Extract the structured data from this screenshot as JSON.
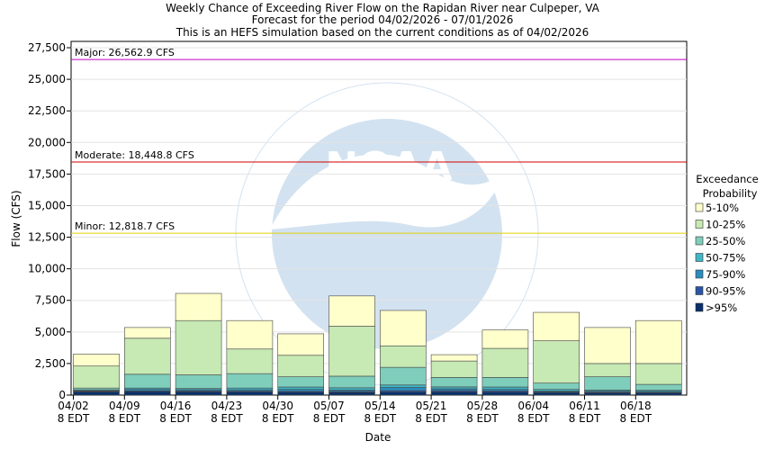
{
  "chart_data": {
    "type": "bar",
    "stacked": true,
    "title": [
      "Weekly Chance of Exceeding River Flow on the Rapidan River near Culpeper, VA",
      "Forecast for the period 04/02/2026 - 07/01/2026",
      "This is an HEFS simulation based on the current conditions as of 04/02/2026"
    ],
    "xlabel": "Date",
    "ylabel": "Flow (CFS)",
    "ylim": [
      0,
      28000
    ],
    "yticks": [
      "0",
      "2,500",
      "5,000",
      "7,500",
      "10,000",
      "12,500",
      "15,000",
      "17,500",
      "20,000",
      "22,500",
      "25,000",
      "27,500"
    ],
    "ytick_values": [
      0,
      2500,
      5000,
      7500,
      10000,
      12500,
      15000,
      17500,
      20000,
      22500,
      25000,
      27500
    ],
    "categories": [
      [
        "04/02",
        "8 EDT"
      ],
      [
        "04/09",
        "8 EDT"
      ],
      [
        "04/16",
        "8 EDT"
      ],
      [
        "04/23",
        "8 EDT"
      ],
      [
        "04/30",
        "8 EDT"
      ],
      [
        "05/07",
        "8 EDT"
      ],
      [
        "05/14",
        "8 EDT"
      ],
      [
        "05/21",
        "8 EDT"
      ],
      [
        "05/28",
        "8 EDT"
      ],
      [
        "06/04",
        "8 EDT"
      ],
      [
        "06/11",
        "8 EDT"
      ],
      [
        "06/18",
        "8 EDT"
      ]
    ],
    "legend_title": [
      "Exceedance",
      "Probability"
    ],
    "legend_position": "right",
    "series": [
      {
        "name": ">95%",
        "color": "#08306b",
        "top": [
          250,
          280,
          260,
          250,
          230,
          220,
          240,
          250,
          230,
          200,
          180,
          170
        ]
      },
      {
        "name": "90-95%",
        "color": "#2a55a5",
        "top": [
          300,
          340,
          330,
          310,
          300,
          290,
          350,
          360,
          330,
          250,
          230,
          220
        ]
      },
      {
        "name": "75-90%",
        "color": "#2b8cbe",
        "top": [
          350,
          450,
          430,
          420,
          450,
          400,
          600,
          500,
          450,
          320,
          300,
          300
        ]
      },
      {
        "name": "50-75%",
        "color": "#41b6c4",
        "top": [
          420,
          560,
          520,
          560,
          640,
          580,
          800,
          650,
          640,
          450,
          400,
          380
        ]
      },
      {
        "name": "25-50%",
        "color": "#7fcdbb",
        "top": [
          560,
          1650,
          1600,
          1700,
          1450,
          1500,
          2200,
          1400,
          1400,
          950,
          1450,
          850
        ]
      },
      {
        "name": "10-25%",
        "color": "#c7e9b4",
        "top": [
          2300,
          4500,
          5900,
          3650,
          3150,
          5450,
          3900,
          2700,
          3700,
          4300,
          2500,
          2500
        ]
      },
      {
        "name": "5-10%",
        "color": "#ffffcc",
        "top": [
          3250,
          5350,
          8050,
          5900,
          4850,
          7850,
          6700,
          3200,
          5150,
          6550,
          5350,
          5900
        ]
      }
    ],
    "legend_order": [
      "5-10%",
      "10-25%",
      "25-50%",
      "50-75%",
      "75-90%",
      "90-95%",
      ">95%"
    ],
    "thresholds": [
      {
        "label": "Major: 26,562.9 CFS",
        "value": 26562.9,
        "color": "#c000c0"
      },
      {
        "label": "Moderate: 18,448.8 CFS",
        "value": 18448.8,
        "color": "#d00000"
      },
      {
        "label": "Minor: 12,818.7 CFS",
        "value": 12818.7,
        "color": "#e0d000"
      }
    ]
  }
}
